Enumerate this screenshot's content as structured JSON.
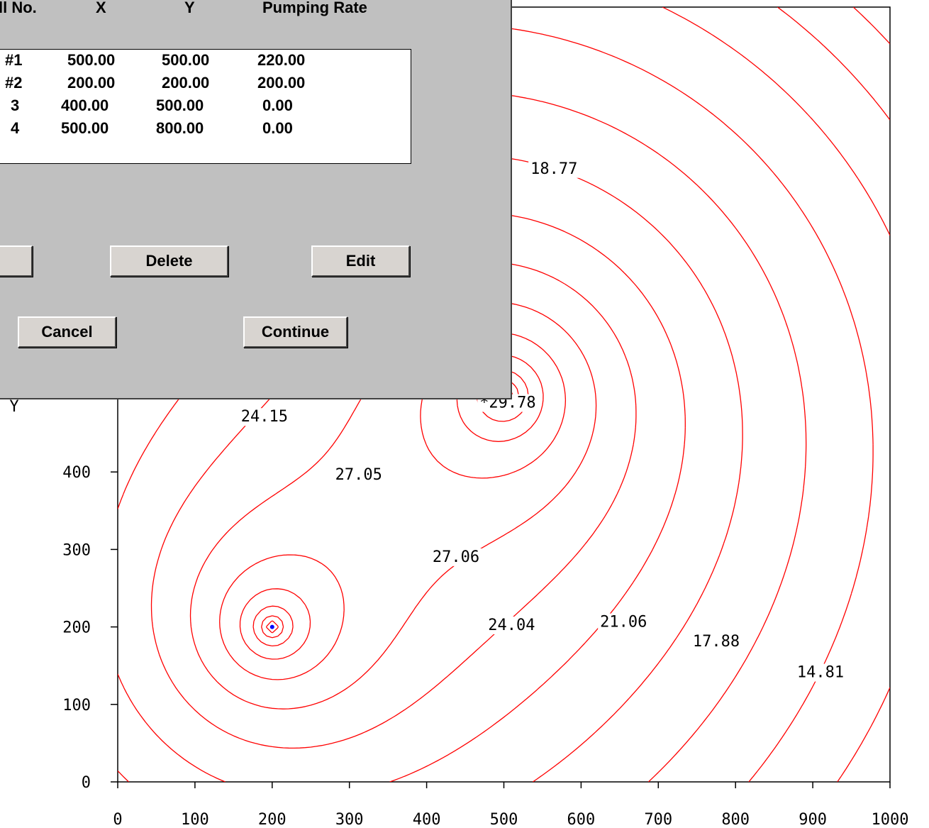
{
  "dialog": {
    "columns": [
      "ll No.",
      "X",
      "Y",
      "Pumping Rate"
    ],
    "wells": [
      {
        "no": "#1",
        "x": "500.00",
        "y": "500.00",
        "rate": "220.00"
      },
      {
        "no": "#2",
        "x": "200.00",
        "y": "200.00",
        "rate": "200.00"
      },
      {
        "no": "3",
        "x": "400.00",
        "y": "500.00",
        "rate": "0.00"
      },
      {
        "no": "4",
        "x": "500.00",
        "y": "800.00",
        "rate": "0.00"
      }
    ],
    "buttons": {
      "add": "",
      "delete": "Delete",
      "edit": "Edit",
      "cancel": "Cancel",
      "continue": "Continue"
    }
  },
  "chart_data": {
    "type": "contour",
    "xlim": [
      0,
      1000
    ],
    "ylim": [
      0,
      1000
    ],
    "x_ticks": [
      "0",
      "100",
      "200",
      "300",
      "400",
      "500",
      "600",
      "700",
      "800",
      "900",
      "1000"
    ],
    "y_ticks": [
      "0",
      "100",
      "200",
      "300",
      "400"
    ],
    "ylabel": "Y",
    "wells": [
      {
        "name": "#1",
        "x": 500,
        "y": 500,
        "rate": 220
      },
      {
        "name": "#2",
        "x": 200,
        "y": 200,
        "rate": 200
      }
    ],
    "contour_labels": [
      {
        "text": "18.77",
        "x": 565,
        "y": 785
      },
      {
        "text": "*29.78",
        "x": 505,
        "y": 483
      },
      {
        "text": "24.15",
        "x": 190,
        "y": 465
      },
      {
        "text": "27.05",
        "x": 312,
        "y": 390
      },
      {
        "text": "27.06",
        "x": 438,
        "y": 284
      },
      {
        "text": "24.04",
        "x": 510,
        "y": 196
      },
      {
        "text": "21.06",
        "x": 655,
        "y": 200
      },
      {
        "text": "17.88",
        "x": 775,
        "y": 175
      },
      {
        "text": "14.81",
        "x": 910,
        "y": 135
      }
    ],
    "line_color": "#ff0000",
    "well_marker_color": "#0000ff"
  }
}
